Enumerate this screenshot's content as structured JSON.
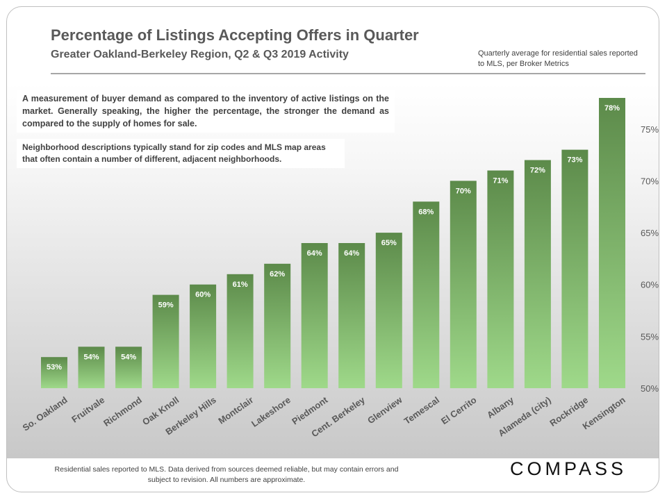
{
  "header": {
    "title": "Percentage of Listings Accepting Offers in Quarter",
    "subtitle": "Greater Oakland-Berkeley  Region, Q2 & Q3 2019 Activity",
    "source_note": "Quarterly average for residential  sales reported to MLS, per Broker Metrics"
  },
  "notes": {
    "description": "A measurement of buyer demand as compared to the inventory of active listings on the market. Generally speaking, the higher the percentage, the stronger the demand as compared to the supply of homes for sale.",
    "neighborhood_note": "Neighborhood descriptions typically stand for zip codes and MLS map areas that often contain a number of different, adjacent neighborhoods."
  },
  "footer": {
    "disclaimer": "Residential sales reported  to MLS. Data derived from sources deemed reliable, but may contain errors and subject to revision.  All numbers are approximate.",
    "logo": "COMPASS"
  },
  "colors": {
    "bar_top": "#5c8a4a",
    "bar_bottom": "#9fd98a",
    "label_text": "#ffffff",
    "axis_text": "#595959"
  },
  "chart_data": {
    "type": "bar",
    "title": "Percentage of Listings Accepting Offers in Quarter",
    "categories": [
      "So. Oakland",
      "Fruitvale",
      "Richmond",
      "Oak Knoll",
      "Berkeley Hills",
      "Montclair",
      "Lakeshore",
      "Piedmont",
      "Cent. Berkeley",
      "Glenview",
      "Temescal",
      "El Cerrito",
      "Albany",
      "Alameda (city)",
      "Rockridge",
      "Kensington"
    ],
    "values": [
      53,
      54,
      54,
      59,
      60,
      61,
      62,
      64,
      64,
      65,
      68,
      70,
      71,
      72,
      73,
      78
    ],
    "data_labels": [
      "53%",
      "54%",
      "54%",
      "59%",
      "60%",
      "61%",
      "62%",
      "64%",
      "64%",
      "65%",
      "68%",
      "70%",
      "71%",
      "72%",
      "73%",
      "78%"
    ],
    "yticks": [
      50,
      55,
      60,
      65,
      70,
      75
    ],
    "ytick_labels": [
      "50%",
      "55%",
      "60%",
      "65%",
      "70%",
      "75%"
    ],
    "ylim": [
      50,
      78
    ],
    "y_axis_side": "right",
    "grid": false,
    "legend": "none"
  }
}
